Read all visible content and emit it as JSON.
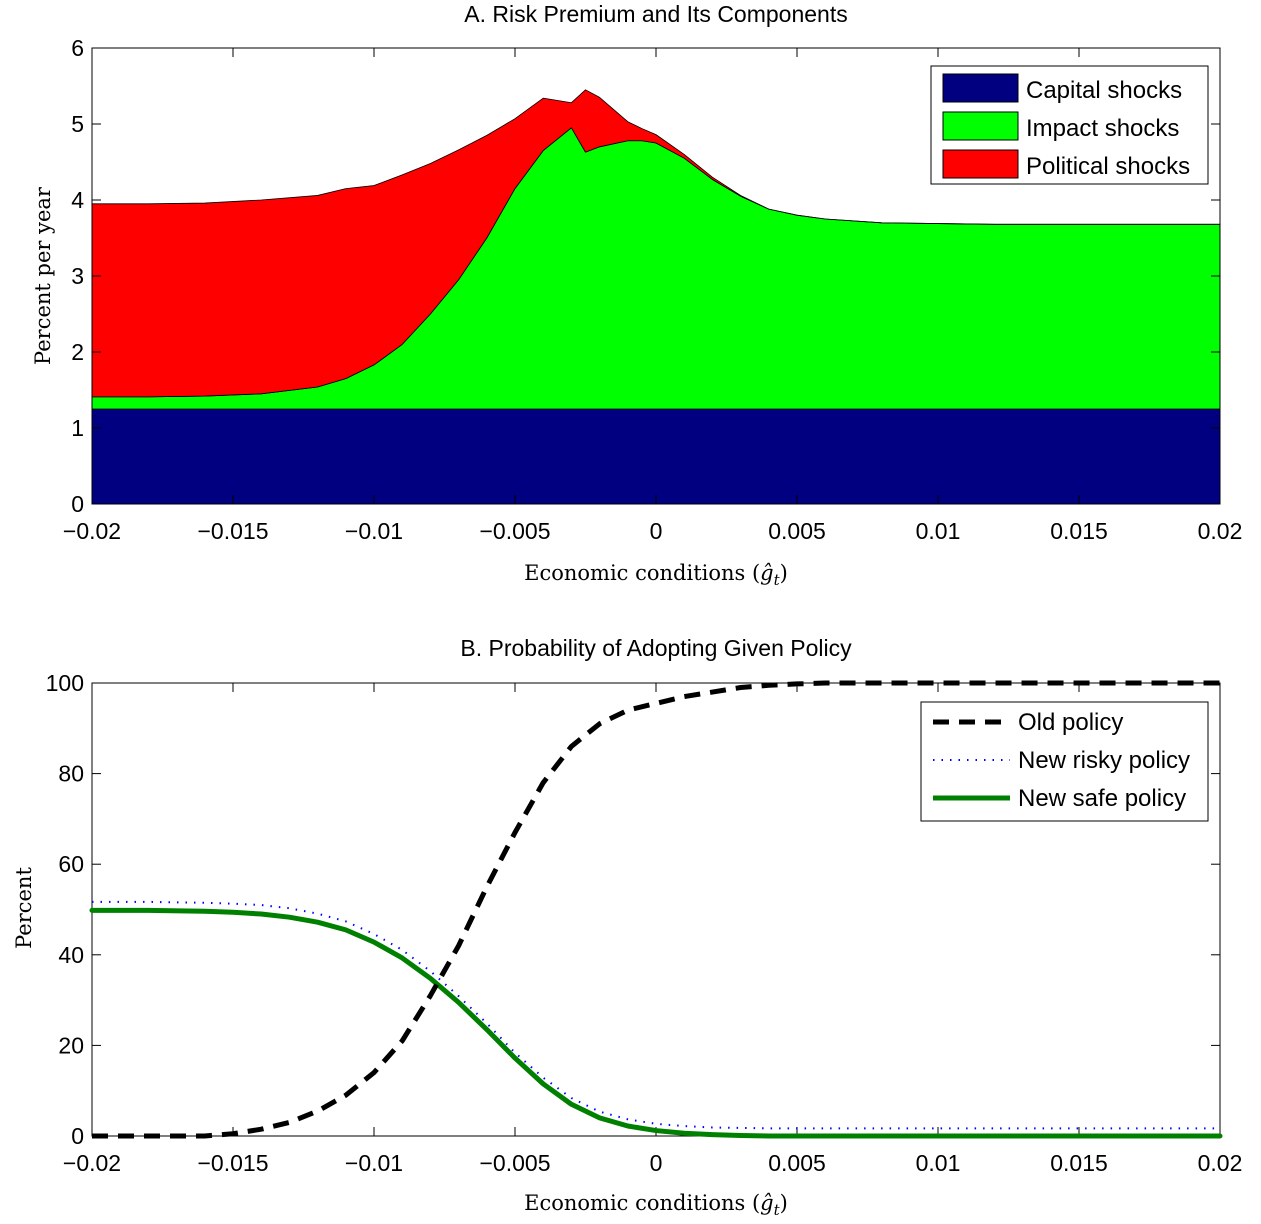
{
  "chart_data": [
    {
      "type": "area",
      "title": "A. Risk Premium and Its Components",
      "xlabel": "Economic conditions",
      "xlabel_symbol": "ĝ",
      "xlabel_subscript": "t",
      "ylabel": "Percent per year",
      "xlim": [
        -0.02,
        0.02
      ],
      "ylim": [
        0,
        6
      ],
      "xticks": [
        -0.02,
        -0.015,
        -0.01,
        -0.005,
        0,
        0.005,
        0.01,
        0.015,
        0.02
      ],
      "xtick_labels": [
        "−0.02",
        "−0.015",
        "−0.01",
        "−0.005",
        "0",
        "0.005",
        "0.01",
        "0.015",
        "0.02"
      ],
      "yticks": [
        0,
        1,
        2,
        3,
        4,
        5,
        6
      ],
      "ytick_labels": [
        "0",
        "1",
        "2",
        "3",
        "4",
        "5",
        "6"
      ],
      "stacked": true,
      "legend_position": "top-right",
      "x": [
        -0.02,
        -0.018,
        -0.016,
        -0.014,
        -0.012,
        -0.011,
        -0.01,
        -0.009,
        -0.008,
        -0.007,
        -0.006,
        -0.005,
        -0.004,
        -0.003,
        -0.0025,
        -0.002,
        -0.001,
        -0.0005,
        0,
        0.001,
        0.002,
        0.003,
        0.004,
        0.005,
        0.006,
        0.008,
        0.01,
        0.012,
        0.015,
        0.02
      ],
      "series": [
        {
          "name": "Capital shocks",
          "color": "#000080",
          "values": [
            1.25,
            1.25,
            1.25,
            1.25,
            1.25,
            1.25,
            1.25,
            1.25,
            1.25,
            1.25,
            1.25,
            1.25,
            1.25,
            1.25,
            1.25,
            1.25,
            1.25,
            1.25,
            1.25,
            1.25,
            1.25,
            1.25,
            1.25,
            1.25,
            1.25,
            1.25,
            1.25,
            1.25,
            1.25,
            1.25
          ]
        },
        {
          "name": "Impact shocks",
          "color": "#00ff00",
          "values": [
            0.16,
            0.16,
            0.17,
            0.2,
            0.29,
            0.4,
            0.58,
            0.85,
            1.25,
            1.7,
            2.25,
            2.9,
            3.4,
            3.7,
            3.38,
            3.45,
            3.53,
            3.53,
            3.5,
            3.3,
            3.02,
            2.8,
            2.63,
            2.55,
            2.5,
            2.45,
            2.44,
            2.43,
            2.43,
            2.43
          ]
        },
        {
          "name": "Political shocks",
          "color": "#ff0000",
          "values": [
            2.54,
            2.54,
            2.54,
            2.55,
            2.52,
            2.5,
            2.36,
            2.23,
            1.98,
            1.71,
            1.35,
            0.92,
            0.69,
            0.33,
            0.82,
            0.65,
            0.25,
            0.16,
            0.11,
            0.05,
            0.03,
            0.01,
            0.0,
            0.0,
            0.0,
            0.0,
            0.0,
            0.0,
            0.0,
            0.0
          ]
        }
      ]
    },
    {
      "type": "line",
      "title": "B. Probability of Adopting Given Policy",
      "xlabel": "Economic conditions",
      "xlabel_symbol": "ĝ",
      "xlabel_subscript": "t",
      "ylabel": "Percent",
      "xlim": [
        -0.02,
        0.02
      ],
      "ylim": [
        0,
        100
      ],
      "xticks": [
        -0.02,
        -0.015,
        -0.01,
        -0.005,
        0,
        0.005,
        0.01,
        0.015,
        0.02
      ],
      "xtick_labels": [
        "−0.02",
        "−0.015",
        "−0.01",
        "−0.005",
        "0",
        "0.005",
        "0.01",
        "0.015",
        "0.02"
      ],
      "yticks": [
        0,
        20,
        40,
        60,
        80,
        100
      ],
      "ytick_labels": [
        "0",
        "20",
        "40",
        "60",
        "80",
        "100"
      ],
      "legend_position": "top-right",
      "x": [
        -0.02,
        -0.018,
        -0.016,
        -0.015,
        -0.014,
        -0.013,
        -0.012,
        -0.011,
        -0.01,
        -0.009,
        -0.008,
        -0.007,
        -0.006,
        -0.005,
        -0.004,
        -0.003,
        -0.002,
        -0.001,
        0,
        0.001,
        0.002,
        0.003,
        0.004,
        0.005,
        0.006,
        0.008,
        0.01,
        0.015,
        0.02
      ],
      "series": [
        {
          "name": "Old policy",
          "color": "#000000",
          "style": "dashed",
          "values": [
            0,
            0,
            0,
            0.5,
            1.5,
            3,
            5.5,
            9,
            14,
            21,
            31,
            42,
            55,
            67,
            78,
            86,
            91,
            94,
            95.5,
            97,
            98,
            99,
            99.5,
            99.8,
            100,
            100,
            100,
            100,
            100
          ]
        },
        {
          "name": "New risky policy",
          "color": "#0000ff",
          "style": "dotted",
          "values": [
            50.8,
            50.8,
            50.6,
            50.4,
            50.1,
            49.4,
            48.2,
            46.5,
            43.7,
            40.2,
            35.5,
            30,
            24,
            17.5,
            12,
            7.5,
            4.5,
            2.8,
            1.8,
            1.3,
            1.0,
            0.9,
            0.8,
            0.8,
            0.8,
            0.8,
            0.8,
            0.8,
            0.8
          ]
        },
        {
          "name": "New safe policy",
          "color": "#008000",
          "style": "solid",
          "values": [
            49.8,
            49.8,
            49.6,
            49.4,
            49,
            48.3,
            47.2,
            45.5,
            42.8,
            39.3,
            34.8,
            29.5,
            23.5,
            17.2,
            11.5,
            7,
            4,
            2.2,
            1.2,
            0.6,
            0.3,
            0.1,
            0,
            0,
            0,
            0,
            0,
            0,
            0
          ]
        }
      ]
    }
  ]
}
